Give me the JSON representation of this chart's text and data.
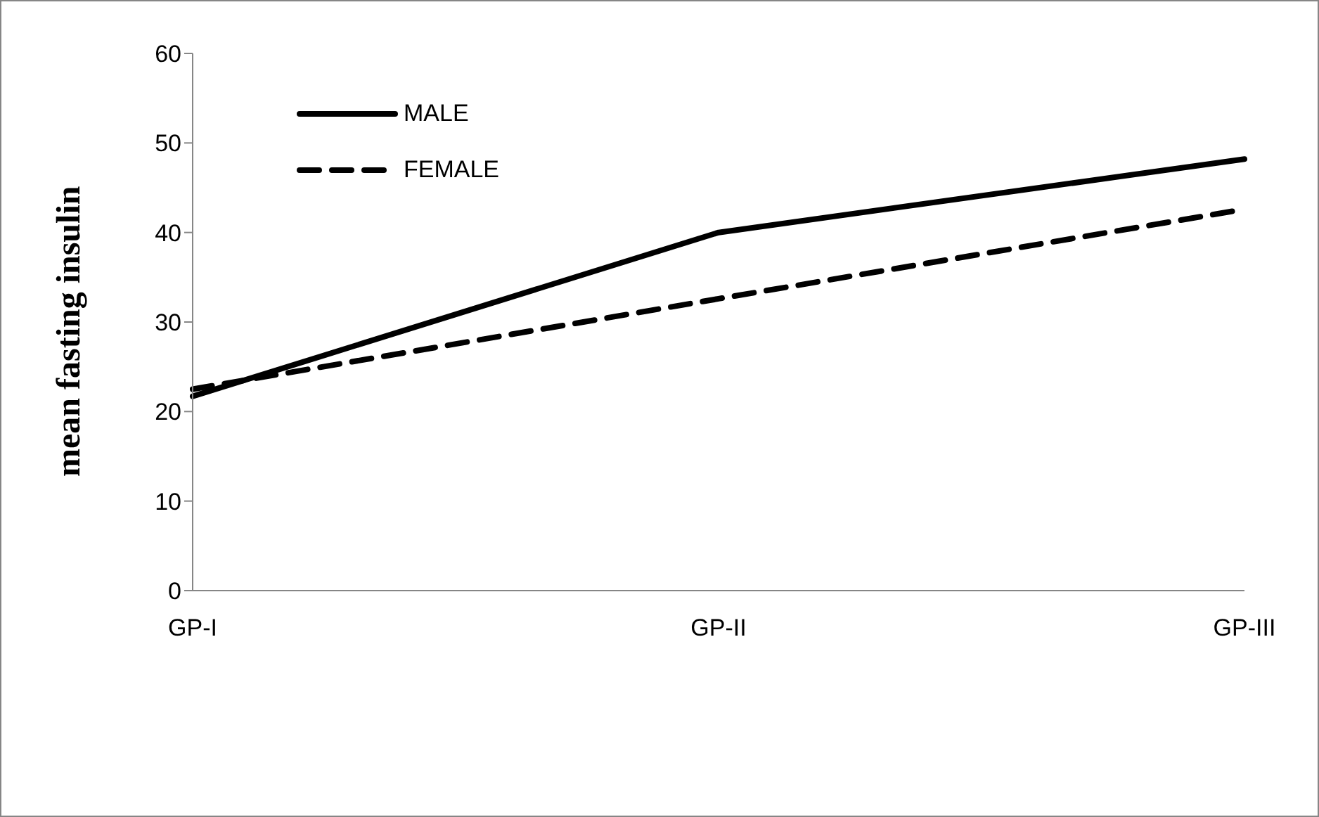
{
  "chart_data": {
    "type": "line",
    "ylabel": "mean fasting insulin",
    "categories": [
      "GP-I",
      "GP-II",
      "GP-III"
    ],
    "series": [
      {
        "name": "MALE",
        "color": "#000000",
        "line_style": "solid",
        "values": [
          21.7,
          40.0,
          48.2
        ]
      },
      {
        "name": "FEMALE",
        "color": "#000000",
        "line_style": "dashed",
        "values": [
          22.5,
          32.6,
          42.6
        ]
      }
    ],
    "ylim": [
      0,
      60
    ],
    "yticks": [
      0,
      10,
      20,
      30,
      40,
      50,
      60
    ],
    "grid": false,
    "legend": "top left",
    "marker": "none"
  }
}
